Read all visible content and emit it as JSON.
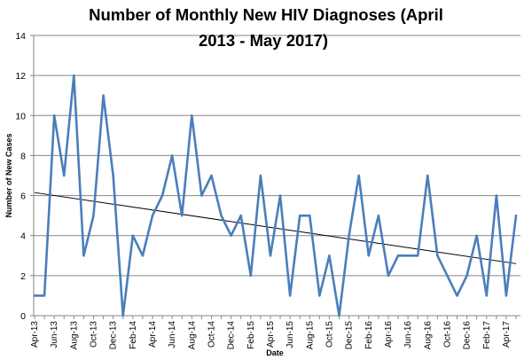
{
  "chart_data": {
    "type": "line",
    "title_line1": "Number of Monthly New HIV Diagnoses (April",
    "title_line2": "2013  - May 2017)",
    "xlabel": "Date",
    "ylabel": "Number of New Cases",
    "ylim": [
      0,
      14
    ],
    "yticks": [
      0,
      2,
      4,
      6,
      8,
      10,
      12,
      14
    ],
    "grid": "horizontal",
    "legend": "none",
    "categories": [
      "Apr-13",
      "May-13",
      "Jun-13",
      "Jul-13",
      "Aug-13",
      "Sep-13",
      "Oct-13",
      "Nov-13",
      "Dec-13",
      "Jan-14",
      "Feb-14",
      "Mar-14",
      "Apr-14",
      "May-14",
      "Jun-14",
      "Jul-14",
      "Aug-14",
      "Sep-14",
      "Oct-14",
      "Nov-14",
      "Dec-14",
      "Jan-15",
      "Feb-15",
      "Mar-15",
      "Apr-15",
      "May-15",
      "Jun-15",
      "Jul-15",
      "Aug-15",
      "Sep-15",
      "Oct-15",
      "Nov-15",
      "Dec-15",
      "Jan-16",
      "Feb-16",
      "Mar-16",
      "Apr-16",
      "May-16",
      "Jun-16",
      "Jul-16",
      "Aug-16",
      "Sep-16",
      "Oct-16",
      "Nov-16",
      "Dec-16",
      "Jan-17",
      "Feb-17",
      "Mar-17",
      "Apr-17",
      "May-17"
    ],
    "tick_labels": [
      "Apr-13",
      "Jun-13",
      "Aug-13",
      "Oct-13",
      "Dec-13",
      "Feb-14",
      "Apr-14",
      "Jun-14",
      "Aug-14",
      "Oct-14",
      "Dec-14",
      "Feb-15",
      "Apr-15",
      "Jun-15",
      "Aug-15",
      "Oct-15",
      "Dec-15",
      "Feb-16",
      "Apr-16",
      "Jun-16",
      "Aug-16",
      "Oct-16",
      "Dec-16",
      "Feb-17",
      "Apr-17"
    ],
    "series": [
      {
        "values": [
          1,
          1,
          10,
          7,
          12,
          3,
          5,
          11,
          7,
          0,
          4,
          3,
          5,
          6,
          8,
          5,
          10,
          6,
          7,
          5,
          4,
          5,
          2,
          7,
          3,
          6,
          1,
          5,
          5,
          1,
          3,
          0,
          4,
          7,
          3,
          5,
          2,
          3,
          3,
          3,
          7,
          3,
          2,
          1,
          2,
          4,
          1,
          6,
          1,
          5
        ],
        "color": "#4a7ebb"
      }
    ],
    "trendline": {
      "type": "linear",
      "start": 6.15,
      "end": 2.6,
      "color": "#000000"
    },
    "colors": {
      "grid": "#868686",
      "axis": "#868686",
      "series": "#4a7ebb",
      "trend": "#000000"
    }
  }
}
